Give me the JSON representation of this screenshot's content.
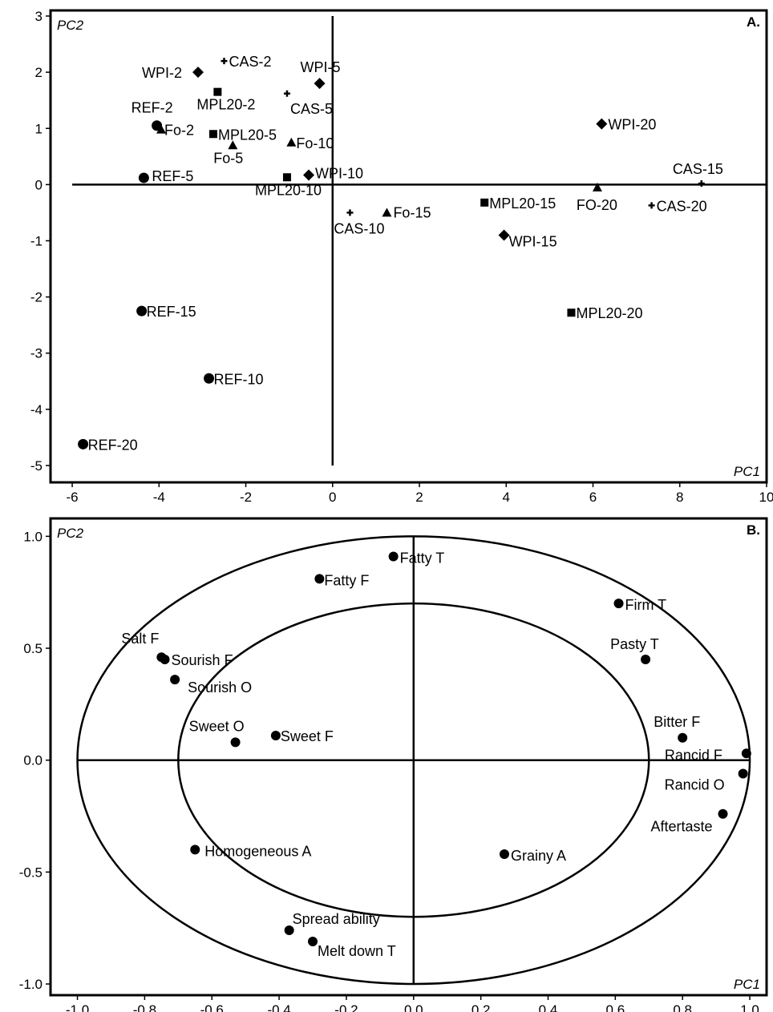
{
  "chart_data": [
    {
      "type": "scatter",
      "panel_label": "A.",
      "xlabel": "PC1",
      "ylabel": "PC2",
      "xlim": [
        -6.5,
        10
      ],
      "ylim": [
        -5.3,
        3.1
      ],
      "xticks": [
        -6,
        -4,
        -2,
        0,
        2,
        4,
        6,
        8,
        10
      ],
      "yticks": [
        3,
        2,
        1,
        0,
        -1,
        -2,
        -3,
        -4,
        -5
      ],
      "crosshair": {
        "x_range": [
          -6,
          10
        ],
        "y_range": [
          -5,
          3
        ]
      },
      "points": [
        {
          "label": "WPI-2",
          "x": -3.1,
          "y": 2.0,
          "marker": "diamond"
        },
        {
          "label": "CAS-2",
          "x": -2.5,
          "y": 2.2,
          "marker": "plus"
        },
        {
          "label": "WPI-5",
          "x": -0.3,
          "y": 1.8,
          "marker": "diamond"
        },
        {
          "label": "MPL20-2",
          "x": -2.65,
          "y": 1.65,
          "marker": "square"
        },
        {
          "label": "CAS-5",
          "x": -1.05,
          "y": 1.62,
          "marker": "plus"
        },
        {
          "label": "REF-2",
          "x": -4.05,
          "y": 1.05,
          "marker": "circle"
        },
        {
          "label": "Fo-2",
          "x": -3.95,
          "y": 0.98,
          "marker": "triangle"
        },
        {
          "label": "MPL20-5",
          "x": -2.75,
          "y": 0.9,
          "marker": "square"
        },
        {
          "label": "Fo-10",
          "x": -0.95,
          "y": 0.75,
          "marker": "triangle"
        },
        {
          "label": "Fo-5",
          "x": -2.3,
          "y": 0.7,
          "marker": "triangle"
        },
        {
          "label": "WPI-20",
          "x": 6.2,
          "y": 1.08,
          "marker": "diamond"
        },
        {
          "label": "REF-5",
          "x": -4.35,
          "y": 0.12,
          "marker": "circle"
        },
        {
          "label": "WPI-10",
          "x": -0.55,
          "y": 0.17,
          "marker": "diamond"
        },
        {
          "label": "MPL20-10",
          "x": -1.05,
          "y": 0.13,
          "marker": "square"
        },
        {
          "label": "CAS-15",
          "x": 8.5,
          "y": 0.02,
          "marker": "plus"
        },
        {
          "label": "FO-20",
          "x": 6.1,
          "y": -0.05,
          "marker": "triangle"
        },
        {
          "label": "MPL20-15",
          "x": 3.5,
          "y": -0.32,
          "marker": "square"
        },
        {
          "label": "CAS-20",
          "x": 7.35,
          "y": -0.37,
          "marker": "plus"
        },
        {
          "label": "CAS-10",
          "x": 0.4,
          "y": -0.5,
          "marker": "plus"
        },
        {
          "label": "Fo-15",
          "x": 1.25,
          "y": -0.5,
          "marker": "triangle"
        },
        {
          "label": "WPI-15",
          "x": 3.95,
          "y": -0.9,
          "marker": "diamond"
        },
        {
          "label": "REF-15",
          "x": -4.4,
          "y": -2.25,
          "marker": "circle"
        },
        {
          "label": "MPL20-20",
          "x": 5.5,
          "y": -2.28,
          "marker": "square"
        },
        {
          "label": "REF-10",
          "x": -2.85,
          "y": -3.45,
          "marker": "circle"
        },
        {
          "label": "REF-20",
          "x": -5.75,
          "y": -4.62,
          "marker": "circle"
        }
      ]
    },
    {
      "type": "scatter",
      "panel_label": "B.",
      "xlabel": "PC1",
      "ylabel": "PC2",
      "xlim": [
        -1.08,
        1.05
      ],
      "ylim": [
        -1.05,
        1.08
      ],
      "xticks": [
        "-1.0",
        "-0.8",
        "-0.6",
        "-0.4",
        "-0.2",
        "0.0",
        "0.2",
        "0.4",
        "0.6",
        "0.8",
        "1.0"
      ],
      "yticks": [
        "1.0",
        "0.5",
        "0.0",
        "-0.5",
        "-1.0"
      ],
      "circles": [
        1.0,
        0.7
      ],
      "crosshair": {
        "x_range": [
          -1.0,
          1.0
        ],
        "y_range": [
          -1.0,
          1.0
        ]
      },
      "points": [
        {
          "label": "Fatty T",
          "x": -0.06,
          "y": 0.91
        },
        {
          "label": "Fatty F",
          "x": -0.28,
          "y": 0.81
        },
        {
          "label": "Firm T",
          "x": 0.61,
          "y": 0.7
        },
        {
          "label": "Salt F",
          "x": -0.75,
          "y": 0.46
        },
        {
          "label": "Sourish F",
          "x": -0.74,
          "y": 0.45
        },
        {
          "label": "Pasty T",
          "x": 0.69,
          "y": 0.45
        },
        {
          "label": "Sourish O",
          "x": -0.71,
          "y": 0.36
        },
        {
          "label": "Sweet O",
          "x": -0.53,
          "y": 0.08
        },
        {
          "label": "Sweet F",
          "x": -0.41,
          "y": 0.11
        },
        {
          "label": "Bitter F",
          "x": 0.8,
          "y": 0.1
        },
        {
          "label": "Rancid F",
          "x": 0.99,
          "y": 0.03
        },
        {
          "label": "Rancid O",
          "x": 0.98,
          "y": -0.06
        },
        {
          "label": "Aftertaste",
          "x": 0.92,
          "y": -0.24
        },
        {
          "label": "Homogeneous A",
          "x": -0.65,
          "y": -0.4
        },
        {
          "label": "Grainy A",
          "x": 0.27,
          "y": -0.42
        },
        {
          "label": "Spread ability",
          "x": -0.37,
          "y": -0.76
        },
        {
          "label": "Melt down T",
          "x": -0.3,
          "y": -0.81
        }
      ]
    }
  ]
}
